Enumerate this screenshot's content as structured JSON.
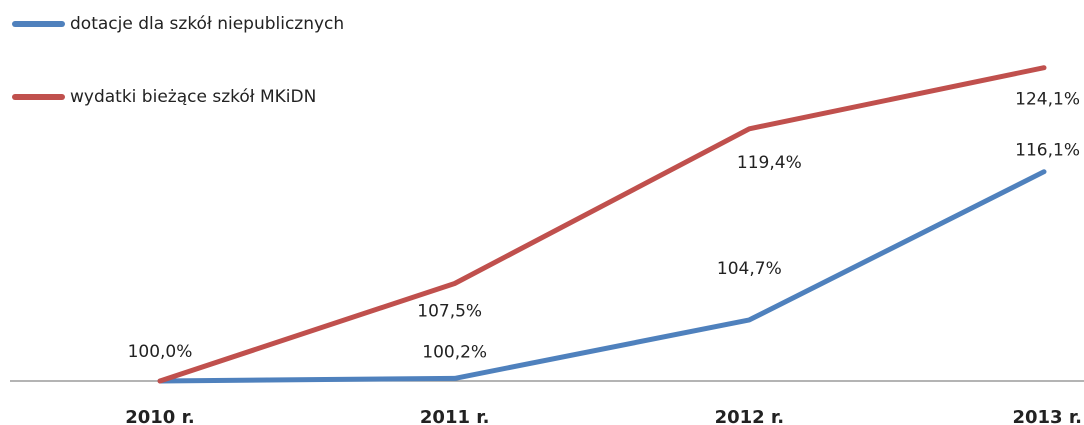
{
  "chart_data": {
    "type": "line",
    "categories": [
      "2010 r.",
      "2011 r.",
      "2012 r.",
      "2013 r."
    ],
    "series": [
      {
        "name": "dotacje dla szkół niepublicznych",
        "color": "#4f81bd",
        "values": [
          100.0,
          100.2,
          104.7,
          116.1
        ],
        "value_labels": [
          null,
          "100,2%",
          "104,7%",
          "116,1%"
        ]
      },
      {
        "name": "wydatki bieżące szkół MKiDN",
        "color": "#c0504d",
        "values": [
          100.0,
          107.5,
          119.4,
          124.1
        ],
        "value_labels": [
          "100,0%",
          "107,5%",
          "119,4%",
          "124,1%"
        ]
      }
    ],
    "ylim": [
      100,
      125
    ],
    "legend": "top-left"
  }
}
